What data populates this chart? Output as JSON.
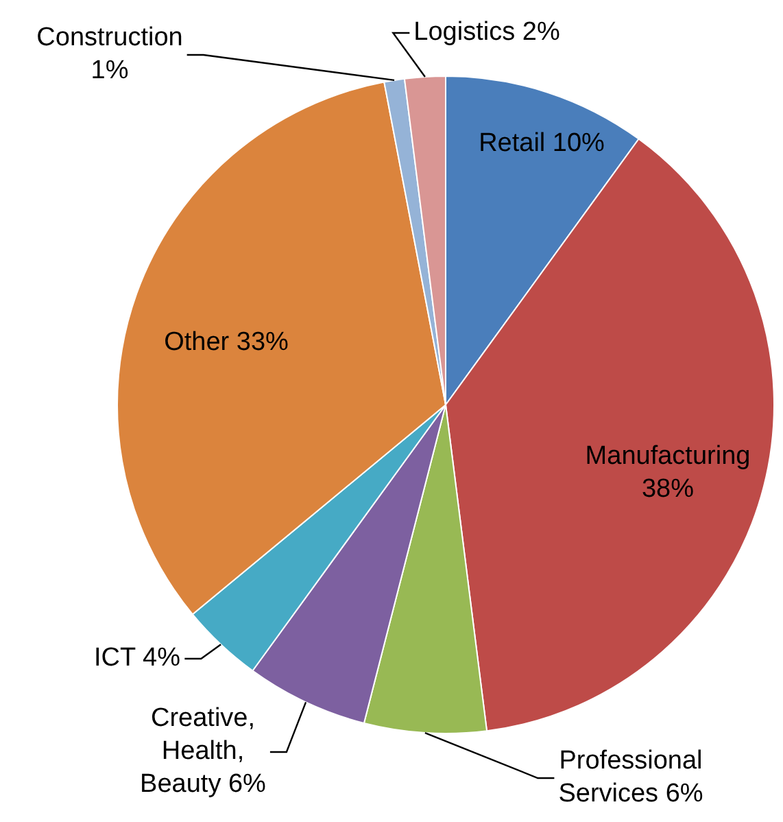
{
  "chart_data": {
    "type": "pie",
    "categories": [
      "Retail",
      "Manufacturing",
      "Professional Services",
      "Creative, Health, Beauty",
      "ICT",
      "Other",
      "Construction",
      "Logistics"
    ],
    "values": [
      10,
      38,
      6,
      6,
      4,
      33,
      1,
      2
    ],
    "value_labels": [
      "10%",
      "38%",
      "6%",
      "6%",
      "4%",
      "33%",
      "1%",
      "2%"
    ],
    "colors": [
      "#4a7ebb",
      "#be4b48",
      "#98b954",
      "#7d60a0",
      "#46aac5",
      "#db843d",
      "#95b3d7",
      "#d99694"
    ],
    "legend": false
  }
}
